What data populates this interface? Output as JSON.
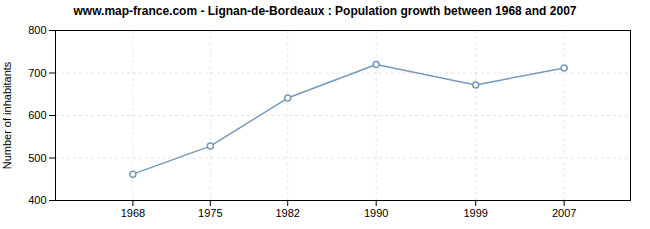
{
  "chart_data": {
    "type": "line",
    "title": "www.map-france.com - Lignan-de-Bordeaux : Population growth between 1968 and 2007",
    "ylabel": "Number of inhabitants",
    "x": [
      1968,
      1975,
      1982,
      1990,
      1999,
      2007
    ],
    "values": [
      462,
      528,
      641,
      720,
      672,
      712
    ],
    "xlim": [
      1961,
      2013
    ],
    "xticks": [
      1968,
      1975,
      1982,
      1990,
      1999,
      2007
    ],
    "ylim": [
      400,
      800
    ],
    "yticks": [
      400,
      500,
      600,
      700,
      800
    ],
    "grid": true,
    "color": "#7799bb",
    "marker": "circle"
  }
}
